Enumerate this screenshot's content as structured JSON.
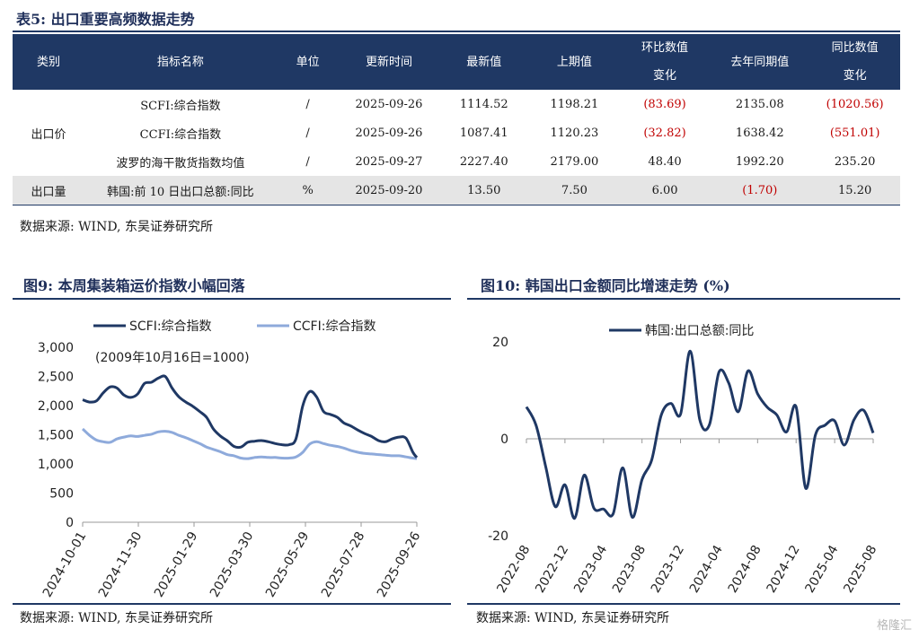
{
  "table": {
    "title": "表5: 出口重要高频数据走势",
    "headers": [
      "类别",
      "指标名称",
      "单位",
      "更新时间",
      "最新值",
      "上期值",
      "环比数值\n变化",
      "去年同期值",
      "同比数值\n变化"
    ],
    "rows": [
      {
        "cat": "",
        "name": "SCFI:综合指数",
        "unit": "/",
        "date": "2025-09-26",
        "latest": "1114.52",
        "prev": "1198.21",
        "mom": "(83.69)",
        "yoy_prev": "2135.08",
        "yoy": "(1020.56)"
      },
      {
        "cat": "出口价",
        "name": "CCFI:综合指数",
        "unit": "/",
        "date": "2025-09-26",
        "latest": "1087.41",
        "prev": "1120.23",
        "mom": "(32.82)",
        "yoy_prev": "1638.42",
        "yoy": "(551.01)"
      },
      {
        "cat": "",
        "name": "波罗的海干散货指数均值",
        "unit": "/",
        "date": "2025-09-27",
        "latest": "2227.40",
        "prev": "2179.00",
        "mom": "48.40",
        "yoy_prev": "1992.20",
        "yoy": "235.20"
      },
      {
        "cat": "出口量",
        "name": "韩国:前 10 日出口总额:同比",
        "unit": "%",
        "date": "2025-09-20",
        "latest": "13.50",
        "prev": "7.50",
        "mom": "6.00",
        "yoy_prev": "(1.70)",
        "yoy": "15.20"
      }
    ],
    "source": "数据来源: WIND, 东吴证券研究所"
  },
  "fig9": {
    "title": "图9: 本周集装箱运价指数小幅回落",
    "source": "数据来源: WIND, 东吴证券研究所"
  },
  "fig10": {
    "title": "图10: 韩国出口金额同比增速走势 (%)",
    "source": "数据来源: WIND, 东吴证券研究所"
  },
  "watermark": "格隆汇",
  "chart_data": [
    {
      "type": "line",
      "annotation": "(2009年10月16日=1000)",
      "x_ticks": [
        "2024-10-01",
        "2024-11-30",
        "2025-01-29",
        "2025-03-30",
        "2025-05-29",
        "2025-07-28",
        "2025-09-26"
      ],
      "yticks": [
        "0",
        "500",
        "1,000",
        "1,500",
        "2,000",
        "2,500",
        "3,000"
      ],
      "ylim": [
        0,
        3000
      ],
      "legend": "top",
      "colors": [
        "#1f3864",
        "#8eaadb"
      ],
      "series": [
        {
          "name": "SCFI:综合指数",
          "points": [
            [
              0,
              2100
            ],
            [
              7,
              2060
            ],
            [
              14,
              2080
            ],
            [
              21,
              2220
            ],
            [
              28,
              2320
            ],
            [
              35,
              2300
            ],
            [
              42,
              2180
            ],
            [
              49,
              2140
            ],
            [
              56,
              2200
            ],
            [
              63,
              2380
            ],
            [
              70,
              2400
            ],
            [
              77,
              2470
            ],
            [
              84,
              2500
            ],
            [
              91,
              2300
            ],
            [
              98,
              2150
            ],
            [
              105,
              2060
            ],
            [
              112,
              1990
            ],
            [
              119,
              1900
            ],
            [
              126,
              1800
            ],
            [
              133,
              1600
            ],
            [
              140,
              1480
            ],
            [
              147,
              1400
            ],
            [
              154,
              1300
            ],
            [
              161,
              1290
            ],
            [
              168,
              1370
            ],
            [
              175,
              1390
            ],
            [
              182,
              1400
            ],
            [
              189,
              1380
            ],
            [
              196,
              1350
            ],
            [
              203,
              1330
            ],
            [
              210,
              1330
            ],
            [
              217,
              1430
            ],
            [
              224,
              2000
            ],
            [
              231,
              2240
            ],
            [
              238,
              2150
            ],
            [
              245,
              1900
            ],
            [
              252,
              1850
            ],
            [
              259,
              1800
            ],
            [
              266,
              1700
            ],
            [
              273,
              1650
            ],
            [
              280,
              1580
            ],
            [
              287,
              1520
            ],
            [
              294,
              1470
            ],
            [
              301,
              1400
            ],
            [
              308,
              1380
            ],
            [
              315,
              1430
            ],
            [
              322,
              1460
            ],
            [
              329,
              1440
            ],
            [
              336,
              1200
            ],
            [
              340,
              1110
            ]
          ]
        },
        {
          "name": "CCFI:综合指数",
          "points": [
            [
              0,
              1600
            ],
            [
              7,
              1490
            ],
            [
              14,
              1410
            ],
            [
              21,
              1380
            ],
            [
              28,
              1370
            ],
            [
              35,
              1430
            ],
            [
              42,
              1460
            ],
            [
              49,
              1480
            ],
            [
              56,
              1470
            ],
            [
              63,
              1490
            ],
            [
              70,
              1510
            ],
            [
              77,
              1550
            ],
            [
              84,
              1560
            ],
            [
              91,
              1540
            ],
            [
              98,
              1490
            ],
            [
              105,
              1450
            ],
            [
              112,
              1400
            ],
            [
              119,
              1350
            ],
            [
              126,
              1290
            ],
            [
              133,
              1250
            ],
            [
              140,
              1210
            ],
            [
              147,
              1160
            ],
            [
              154,
              1140
            ],
            [
              161,
              1100
            ],
            [
              168,
              1090
            ],
            [
              175,
              1110
            ],
            [
              182,
              1120
            ],
            [
              189,
              1110
            ],
            [
              196,
              1110
            ],
            [
              203,
              1100
            ],
            [
              210,
              1100
            ],
            [
              217,
              1120
            ],
            [
              224,
              1200
            ],
            [
              231,
              1340
            ],
            [
              238,
              1380
            ],
            [
              245,
              1350
            ],
            [
              252,
              1320
            ],
            [
              259,
              1300
            ],
            [
              266,
              1270
            ],
            [
              273,
              1230
            ],
            [
              280,
              1200
            ],
            [
              287,
              1180
            ],
            [
              294,
              1170
            ],
            [
              301,
              1160
            ],
            [
              308,
              1150
            ],
            [
              315,
              1140
            ],
            [
              322,
              1140
            ],
            [
              329,
              1120
            ],
            [
              336,
              1100
            ],
            [
              340,
              1090
            ]
          ]
        }
      ]
    },
    {
      "type": "line",
      "x_ticks": [
        "2022-08",
        "2022-12",
        "2023-04",
        "2023-08",
        "2023-12",
        "2024-04",
        "2024-08",
        "2024-12",
        "2025-04",
        "2025-08"
      ],
      "yticks": [
        "-20",
        "0",
        "20"
      ],
      "ylim": [
        -20,
        20
      ],
      "legend": "top",
      "colors": [
        "#1f3864"
      ],
      "series": [
        {
          "name": "韩国:出口总额:同比",
          "values": [
            6.6,
            2.8,
            -5.7,
            -14.0,
            -9.5,
            -16.4,
            -7.5,
            -14.3,
            -14.5,
            -15.5,
            -6.0,
            -16.2,
            -8.4,
            -4.4,
            4.9,
            7.3,
            5.1,
            18.1,
            3.9,
            2.9,
            13.8,
            11.5,
            5.6,
            14.0,
            9.3,
            6.5,
            4.9,
            1.4,
            6.6,
            -10.2,
            0.8,
            2.8,
            3.7,
            -1.3,
            3.9,
            5.9,
            1.2
          ]
        }
      ]
    }
  ]
}
